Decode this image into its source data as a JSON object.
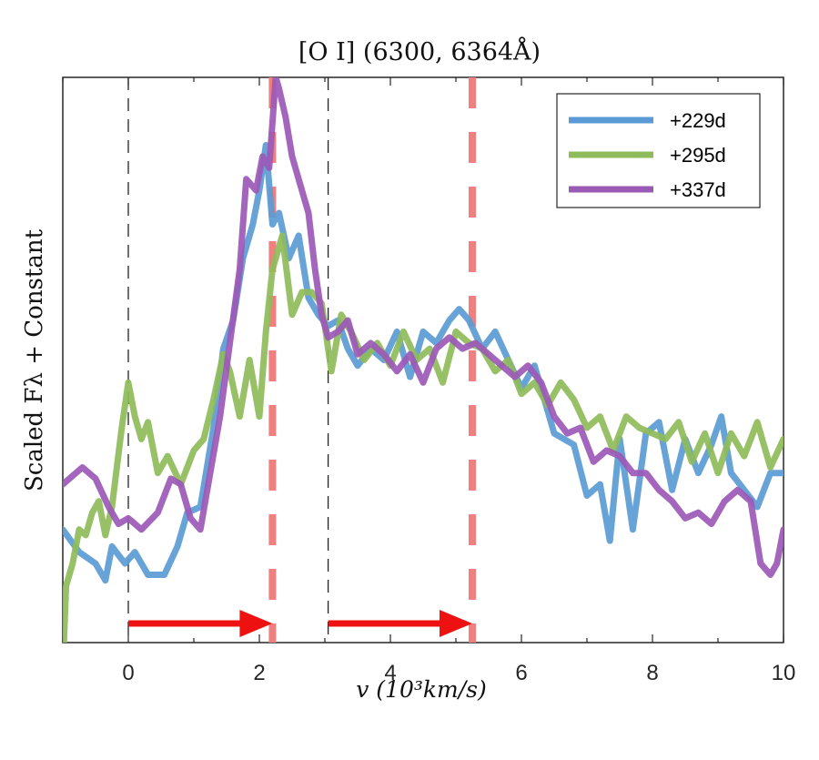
{
  "chart_data": {
    "type": "line",
    "title": "[O I] (6300, 6364Å)",
    "xlabel": "v (10³km/s)",
    "ylabel": "Scaled Fλ + Constant",
    "xlim": [
      -1,
      10
    ],
    "ylim": [
      0,
      100
    ],
    "xticks": [
      0,
      2,
      4,
      6,
      8,
      10
    ],
    "xtick_labels": [
      "0",
      "2",
      "4",
      "6",
      "8",
      "10"
    ],
    "grid": false,
    "legend_position": "top-right",
    "series": [
      {
        "name": "+229d",
        "color": "#5b9bd5",
        "x": [
          -1.0,
          -0.75,
          -0.5,
          -0.35,
          -0.25,
          -0.05,
          0.1,
          0.3,
          0.55,
          0.75,
          0.9,
          1.1,
          1.3,
          1.45,
          1.6,
          1.75,
          1.9,
          2.0,
          2.1,
          2.2,
          2.3,
          2.45,
          2.6,
          2.75,
          2.9,
          3.05,
          3.2,
          3.35,
          3.5,
          3.7,
          3.9,
          4.1,
          4.3,
          4.5,
          4.7,
          4.9,
          5.05,
          5.2,
          5.4,
          5.6,
          5.8,
          6.0,
          6.2,
          6.5,
          6.8,
          7.0,
          7.2,
          7.35,
          7.5,
          7.7,
          7.9,
          8.1,
          8.3,
          8.5,
          8.7,
          8.9,
          9.05,
          9.2,
          9.4,
          9.6,
          9.8,
          10.0
        ],
        "y": [
          20,
          16,
          14,
          11,
          17,
          14,
          16,
          12,
          12,
          17,
          23,
          24,
          38,
          52,
          57,
          68,
          74,
          80,
          88,
          74,
          76,
          68,
          72,
          61,
          58,
          56,
          57,
          52,
          49,
          52,
          50,
          55,
          47,
          55,
          53,
          57,
          59,
          57,
          52,
          55,
          50,
          45,
          49,
          37,
          35,
          26,
          28,
          18,
          36,
          20,
          37,
          39,
          27,
          36,
          30,
          35,
          40,
          30,
          27,
          24,
          30,
          30
        ]
      },
      {
        "name": "+295d",
        "color": "#8fbc5a",
        "x": [
          -1.0,
          -0.95,
          -0.85,
          -0.75,
          -0.65,
          -0.55,
          -0.45,
          -0.35,
          -0.25,
          -0.1,
          0.0,
          0.1,
          0.2,
          0.3,
          0.45,
          0.6,
          0.8,
          1.0,
          1.15,
          1.3,
          1.45,
          1.55,
          1.7,
          1.85,
          2.0,
          2.1,
          2.2,
          2.35,
          2.5,
          2.65,
          2.8,
          2.95,
          3.1,
          3.25,
          3.4,
          3.6,
          3.8,
          4.0,
          4.2,
          4.4,
          4.6,
          4.8,
          5.0,
          5.2,
          5.4,
          5.6,
          5.8,
          6.0,
          6.2,
          6.4,
          6.6,
          6.8,
          7.0,
          7.2,
          7.4,
          7.6,
          7.8,
          8.0,
          8.2,
          8.4,
          8.6,
          8.8,
          9.0,
          9.2,
          9.4,
          9.6,
          9.8,
          10.0
        ],
        "y": [
          -5,
          10,
          14,
          20,
          19,
          23,
          25,
          19,
          24,
          38,
          46,
          40,
          36,
          39,
          30,
          33,
          28,
          34,
          36,
          43,
          51,
          48,
          40,
          50,
          40,
          55,
          66,
          72,
          58,
          62,
          62,
          60,
          48,
          58,
          55,
          50,
          53,
          49,
          55,
          50,
          52,
          46,
          55,
          53,
          52,
          48,
          50,
          44,
          46,
          42,
          46,
          43,
          38,
          40,
          34,
          40,
          38,
          37,
          36,
          39,
          32,
          37,
          30,
          37,
          33,
          39,
          31,
          36
        ]
      },
      {
        "name": "+337d",
        "color": "#9b59b6",
        "x": [
          -1.0,
          -0.7,
          -0.5,
          -0.3,
          -0.15,
          0.0,
          0.2,
          0.45,
          0.65,
          0.8,
          0.95,
          1.1,
          1.25,
          1.4,
          1.55,
          1.7,
          1.8,
          1.95,
          2.05,
          2.15,
          2.25,
          2.3,
          2.4,
          2.5,
          2.6,
          2.75,
          2.85,
          2.95,
          3.05,
          3.2,
          3.35,
          3.5,
          3.7,
          3.9,
          4.1,
          4.3,
          4.5,
          4.7,
          4.9,
          5.1,
          5.3,
          5.5,
          5.7,
          5.9,
          6.1,
          6.3,
          6.5,
          6.7,
          6.9,
          7.1,
          7.3,
          7.5,
          7.7,
          7.9,
          8.1,
          8.3,
          8.5,
          8.7,
          8.9,
          9.1,
          9.3,
          9.5,
          9.65,
          9.8,
          9.9,
          10.0
        ],
        "y": [
          28,
          31,
          29,
          24,
          21,
          22,
          20,
          23,
          29,
          28,
          22,
          20,
          30,
          40,
          53,
          66,
          82,
          80,
          86,
          84,
          100,
          98,
          93,
          86,
          82,
          76,
          66,
          58,
          54,
          55,
          57,
          51,
          53,
          51,
          48,
          51,
          46,
          52,
          54,
          52,
          53,
          51,
          49,
          47,
          49,
          46,
          40,
          37,
          38,
          32,
          34,
          33,
          30,
          30,
          27,
          25,
          22,
          23,
          21,
          25,
          27,
          25,
          14,
          12,
          14,
          20
        ]
      }
    ],
    "reference_lines": {
      "black_dashed_x": [
        0,
        3.05
      ],
      "red_dashed_x": [
        2.2,
        5.25
      ],
      "black_color": "#222222",
      "red_color": "#f08080"
    },
    "arrows": [
      {
        "from": 0,
        "to": 2.2,
        "color": "#ee1111"
      },
      {
        "from": 3.05,
        "to": 5.25,
        "color": "#ee1111"
      }
    ]
  }
}
